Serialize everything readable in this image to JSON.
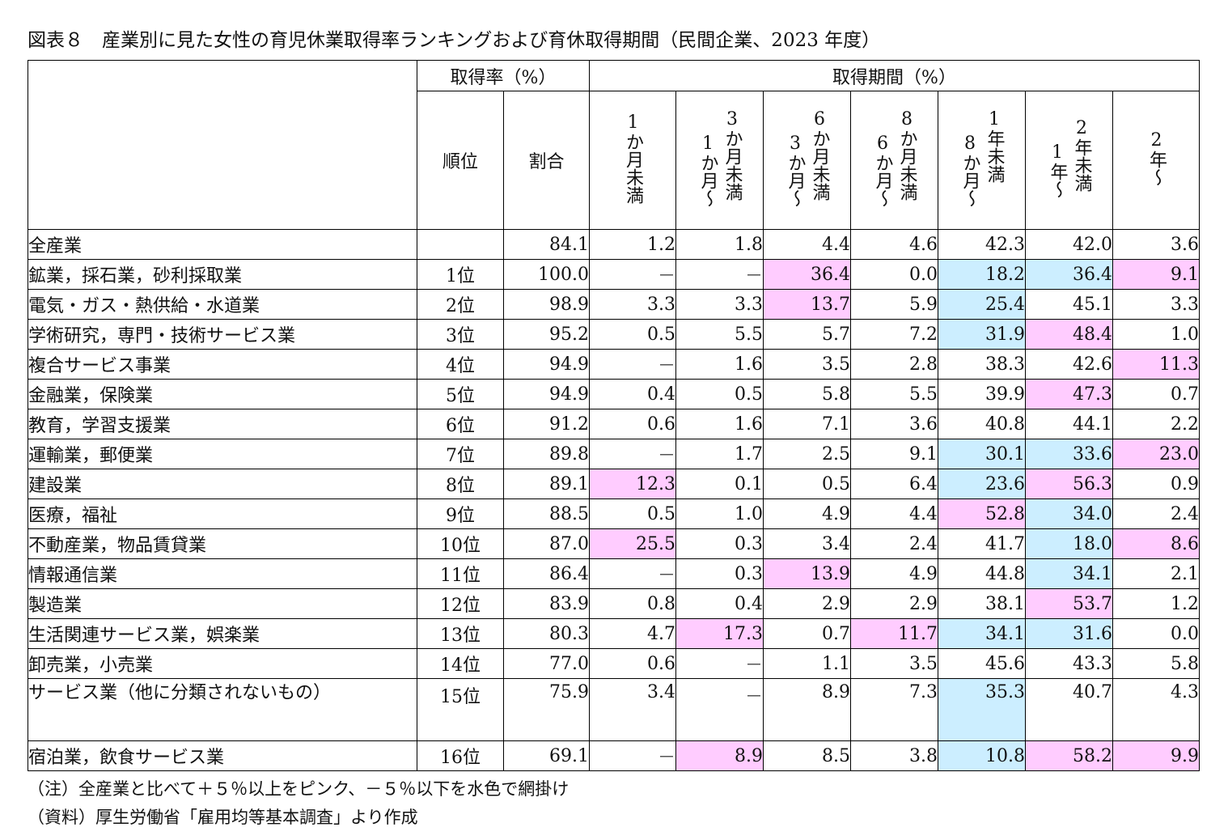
{
  "title": "図表８　産業別に見た女性の育児休業取得率ランキングおよび育休取得期間（民間企業、2023 年度）",
  "header": {
    "group_rate": "取得率（%）",
    "group_period": "取得期間（%）",
    "rank": "順位",
    "ratio": "割合",
    "periods": [
      {
        "lines": [
          "1か月未満"
        ]
      },
      {
        "lines": [
          "3か月未満",
          "1か月〜"
        ]
      },
      {
        "lines": [
          "6か月未満",
          "3か月〜"
        ]
      },
      {
        "lines": [
          "8か月未満",
          "6か月〜"
        ]
      },
      {
        "lines": [
          "1年未満",
          "8か月〜"
        ]
      },
      {
        "lines": [
          "2年未満",
          "1年〜"
        ]
      },
      {
        "lines": [
          "2年〜"
        ]
      }
    ]
  },
  "colors": {
    "pink": "#ffccff",
    "blue": "#cceeff",
    "border": "#000000"
  },
  "rows": [
    {
      "label": "全産業",
      "rank": "",
      "ratio": "84.1",
      "p": [
        "1.2",
        "1.8",
        "4.4",
        "4.6",
        "42.3",
        "42.0",
        "3.6"
      ],
      "shade": [
        "",
        "",
        "",
        "",
        "",
        "",
        ""
      ]
    },
    {
      "label": "鉱業，採石業，砂利採取業",
      "rank": "1位",
      "ratio": "100.0",
      "p": [
        "－",
        "－",
        "36.4",
        "0.0",
        "18.2",
        "36.4",
        "9.1"
      ],
      "shade": [
        "",
        "",
        "pink",
        "",
        "blue",
        "blue",
        "pink"
      ]
    },
    {
      "label": "電気・ガス・熱供給・水道業",
      "rank": "2位",
      "ratio": "98.9",
      "p": [
        "3.3",
        "3.3",
        "13.7",
        "5.9",
        "25.4",
        "45.1",
        "3.3"
      ],
      "shade": [
        "",
        "",
        "pink",
        "",
        "blue",
        "",
        ""
      ]
    },
    {
      "label": "学術研究，専門・技術サービス業",
      "rank": "3位",
      "ratio": "95.2",
      "p": [
        "0.5",
        "5.5",
        "5.7",
        "7.2",
        "31.9",
        "48.4",
        "1.0"
      ],
      "shade": [
        "",
        "",
        "",
        "",
        "blue",
        "pink",
        ""
      ]
    },
    {
      "label": "複合サービス事業",
      "rank": "4位",
      "ratio": "94.9",
      "p": [
        "－",
        "1.6",
        "3.5",
        "2.8",
        "38.3",
        "42.6",
        "11.3"
      ],
      "shade": [
        "",
        "",
        "",
        "",
        "",
        "",
        "pink"
      ]
    },
    {
      "label": "金融業，保険業",
      "rank": "5位",
      "ratio": "94.9",
      "p": [
        "0.4",
        "0.5",
        "5.8",
        "5.5",
        "39.9",
        "47.3",
        "0.7"
      ],
      "shade": [
        "",
        "",
        "",
        "",
        "",
        "pink",
        ""
      ]
    },
    {
      "label": "教育，学習支援業",
      "rank": "6位",
      "ratio": "91.2",
      "p": [
        "0.6",
        "1.6",
        "7.1",
        "3.6",
        "40.8",
        "44.1",
        "2.2"
      ],
      "shade": [
        "",
        "",
        "",
        "",
        "",
        "",
        ""
      ]
    },
    {
      "label": "運輸業，郵便業",
      "rank": "7位",
      "ratio": "89.8",
      "p": [
        "－",
        "1.7",
        "2.5",
        "9.1",
        "30.1",
        "33.6",
        "23.0"
      ],
      "shade": [
        "",
        "",
        "",
        "",
        "blue",
        "blue",
        "pink"
      ]
    },
    {
      "label": "建設業",
      "rank": "8位",
      "ratio": "89.1",
      "p": [
        "12.3",
        "0.1",
        "0.5",
        "6.4",
        "23.6",
        "56.3",
        "0.9"
      ],
      "shade": [
        "pink",
        "",
        "",
        "",
        "blue",
        "pink",
        ""
      ]
    },
    {
      "label": "医療，福祉",
      "rank": "9位",
      "ratio": "88.5",
      "p": [
        "0.5",
        "1.0",
        "4.9",
        "4.4",
        "52.8",
        "34.0",
        "2.4"
      ],
      "shade": [
        "",
        "",
        "",
        "",
        "pink",
        "blue",
        ""
      ]
    },
    {
      "label": "不動産業，物品賃貸業",
      "rank": "10位",
      "ratio": "87.0",
      "p": [
        "25.5",
        "0.3",
        "3.4",
        "2.4",
        "41.7",
        "18.0",
        "8.6"
      ],
      "shade": [
        "pink",
        "",
        "",
        "",
        "",
        "blue",
        "pink"
      ]
    },
    {
      "label": "情報通信業",
      "rank": "11位",
      "ratio": "86.4",
      "p": [
        "－",
        "0.3",
        "13.9",
        "4.9",
        "44.8",
        "34.1",
        "2.1"
      ],
      "shade": [
        "",
        "",
        "pink",
        "",
        "",
        "blue",
        ""
      ]
    },
    {
      "label": "製造業",
      "rank": "12位",
      "ratio": "83.9",
      "p": [
        "0.8",
        "0.4",
        "2.9",
        "2.9",
        "38.1",
        "53.7",
        "1.2"
      ],
      "shade": [
        "",
        "",
        "",
        "",
        "",
        "pink",
        ""
      ]
    },
    {
      "label": "生活関連サービス業，娯楽業",
      "rank": "13位",
      "ratio": "80.3",
      "p": [
        "4.7",
        "17.3",
        "0.7",
        "11.7",
        "34.1",
        "31.6",
        "0.0"
      ],
      "shade": [
        "",
        "pink",
        "",
        "pink",
        "blue",
        "blue",
        ""
      ]
    },
    {
      "label": "卸売業，小売業",
      "rank": "14位",
      "ratio": "77.0",
      "p": [
        "0.6",
        "－",
        "1.1",
        "3.5",
        "45.6",
        "43.3",
        "5.8"
      ],
      "shade": [
        "",
        "",
        "",
        "",
        "",
        "",
        ""
      ]
    },
    {
      "label": "サービス業（他に分類されないもの）",
      "rank": "15位",
      "ratio": "75.9",
      "p": [
        "3.4",
        "－",
        "8.9",
        "7.3",
        "35.3",
        "40.7",
        "4.3"
      ],
      "shade": [
        "",
        "",
        "",
        "",
        "blue",
        "",
        ""
      ],
      "tall": true
    },
    {
      "label": "宿泊業，飲食サービス業",
      "rank": "16位",
      "ratio": "69.1",
      "p": [
        "－",
        "8.9",
        "8.5",
        "3.8",
        "10.8",
        "58.2",
        "9.9"
      ],
      "shade": [
        "",
        "pink",
        "",
        "",
        "blue",
        "pink",
        "pink"
      ]
    }
  ],
  "notes": {
    "note": "（注）全産業と比べて＋５％以上をピンク、－５％以下を水色で網掛け",
    "source": "（資料）厚生労働省「雇用均等基本調査」より作成"
  }
}
